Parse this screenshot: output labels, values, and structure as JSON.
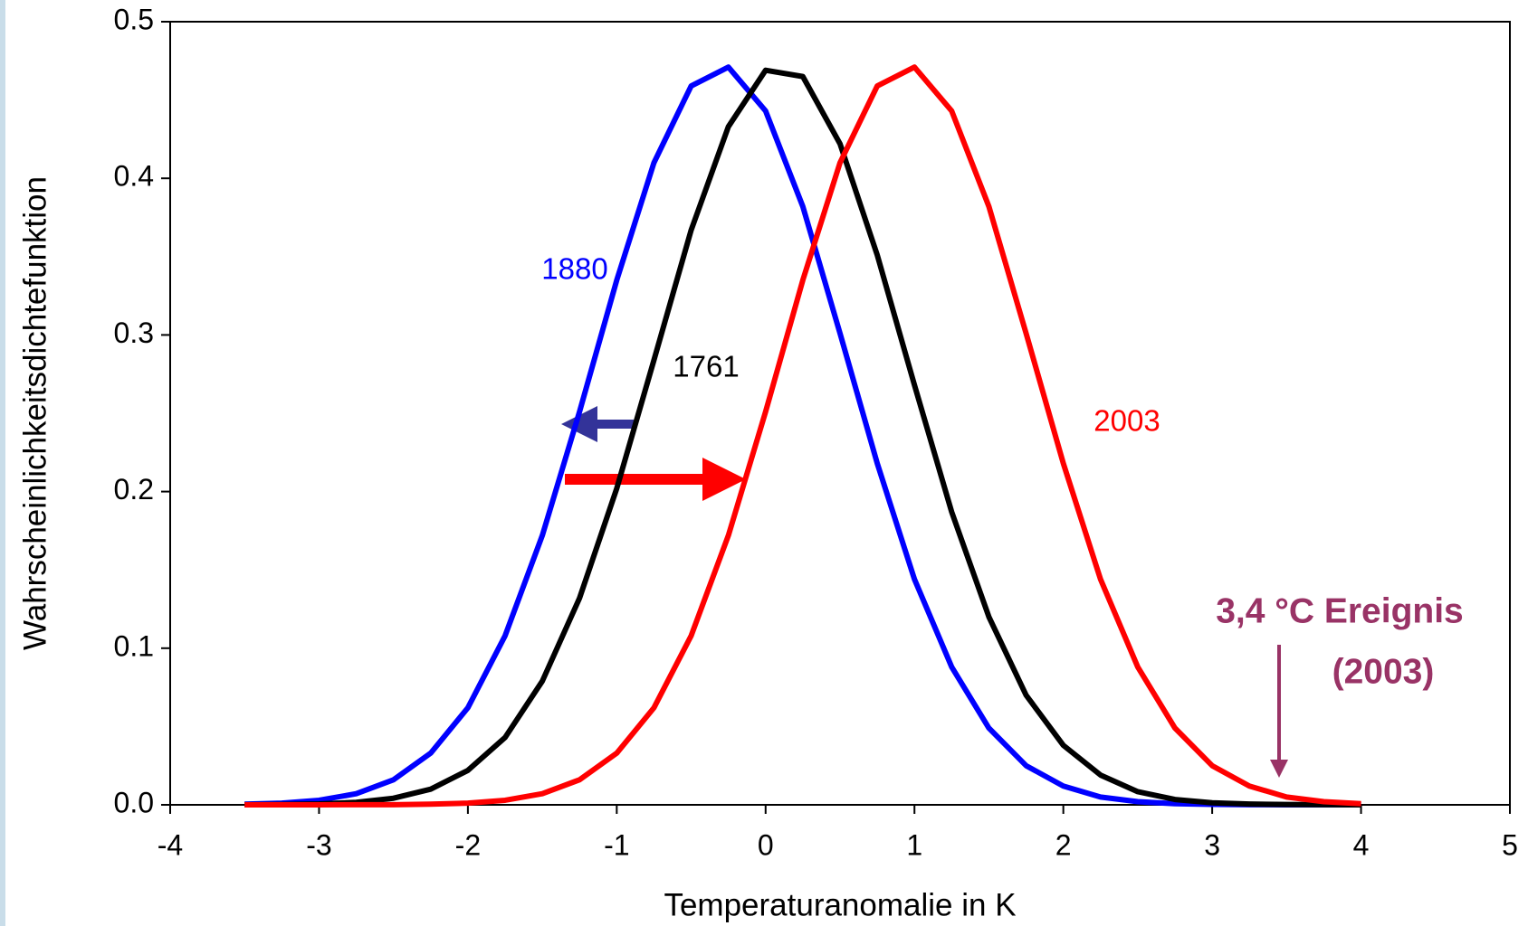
{
  "chart_data": {
    "type": "line",
    "xlabel": "Temperaturanomalie in K",
    "ylabel": "Wahrscheinlichkeitsdichtefunktion",
    "x": [
      -3.5,
      -3.25,
      -3,
      -2.75,
      -2.5,
      -2.25,
      -2,
      -1.75,
      -1.5,
      -1.25,
      -1,
      -0.75,
      -0.5,
      -0.25,
      0,
      0.25,
      0.5,
      0.75,
      1,
      1.25,
      1.5,
      1.75,
      2,
      2.25,
      2.5,
      2.75,
      3,
      3.25,
      3.5,
      3.75,
      4
    ],
    "series": [
      {
        "name": "1880",
        "color": "#0000ff",
        "values": [
          0.0004,
          0.0011,
          0.0029,
          0.0071,
          0.016,
          0.033,
          0.062,
          0.108,
          0.172,
          0.251,
          0.335,
          0.41,
          0.459,
          0.471,
          0.443,
          0.382,
          0.301,
          0.218,
          0.144,
          0.088,
          0.049,
          0.025,
          0.012,
          0.005,
          0.002,
          0.0007,
          0.0003,
          0.0001,
          0,
          0,
          0
        ]
      },
      {
        "name": "1761",
        "color": "#000000",
        "values": [
          0.0001,
          0.0002,
          0.0006,
          0.0016,
          0.0042,
          0.01,
          0.022,
          0.043,
          0.079,
          0.132,
          0.202,
          0.284,
          0.367,
          0.433,
          0.469,
          0.465,
          0.422,
          0.351,
          0.268,
          0.187,
          0.12,
          0.07,
          0.038,
          0.019,
          0.0084,
          0.0034,
          0.0013,
          0.0005,
          0.0002,
          0.0001,
          0
        ]
      },
      {
        "name": "2003",
        "color": "#ff0000",
        "values": [
          0,
          0,
          0,
          0.0001,
          0.0001,
          0.0004,
          0.0011,
          0.0029,
          0.0071,
          0.016,
          0.033,
          0.062,
          0.108,
          0.172,
          0.251,
          0.335,
          0.41,
          0.459,
          0.471,
          0.443,
          0.382,
          0.301,
          0.218,
          0.144,
          0.088,
          0.049,
          0.025,
          0.012,
          0.005,
          0.002,
          0.0007
        ]
      }
    ],
    "annotations": [
      "3,4 °C Ereignis",
      "(2003)"
    ],
    "xlim": [
      -4,
      5
    ],
    "xticks": [
      -4,
      -3,
      -2,
      -1,
      0,
      1,
      2,
      3,
      4,
      5
    ],
    "ylim": [
      0,
      0.5
    ],
    "yticks": [
      {
        "value": 0,
        "label": "0.0"
      },
      0.1,
      0.2,
      0.3,
      0.4,
      0.5
    ],
    "grid": false
  }
}
